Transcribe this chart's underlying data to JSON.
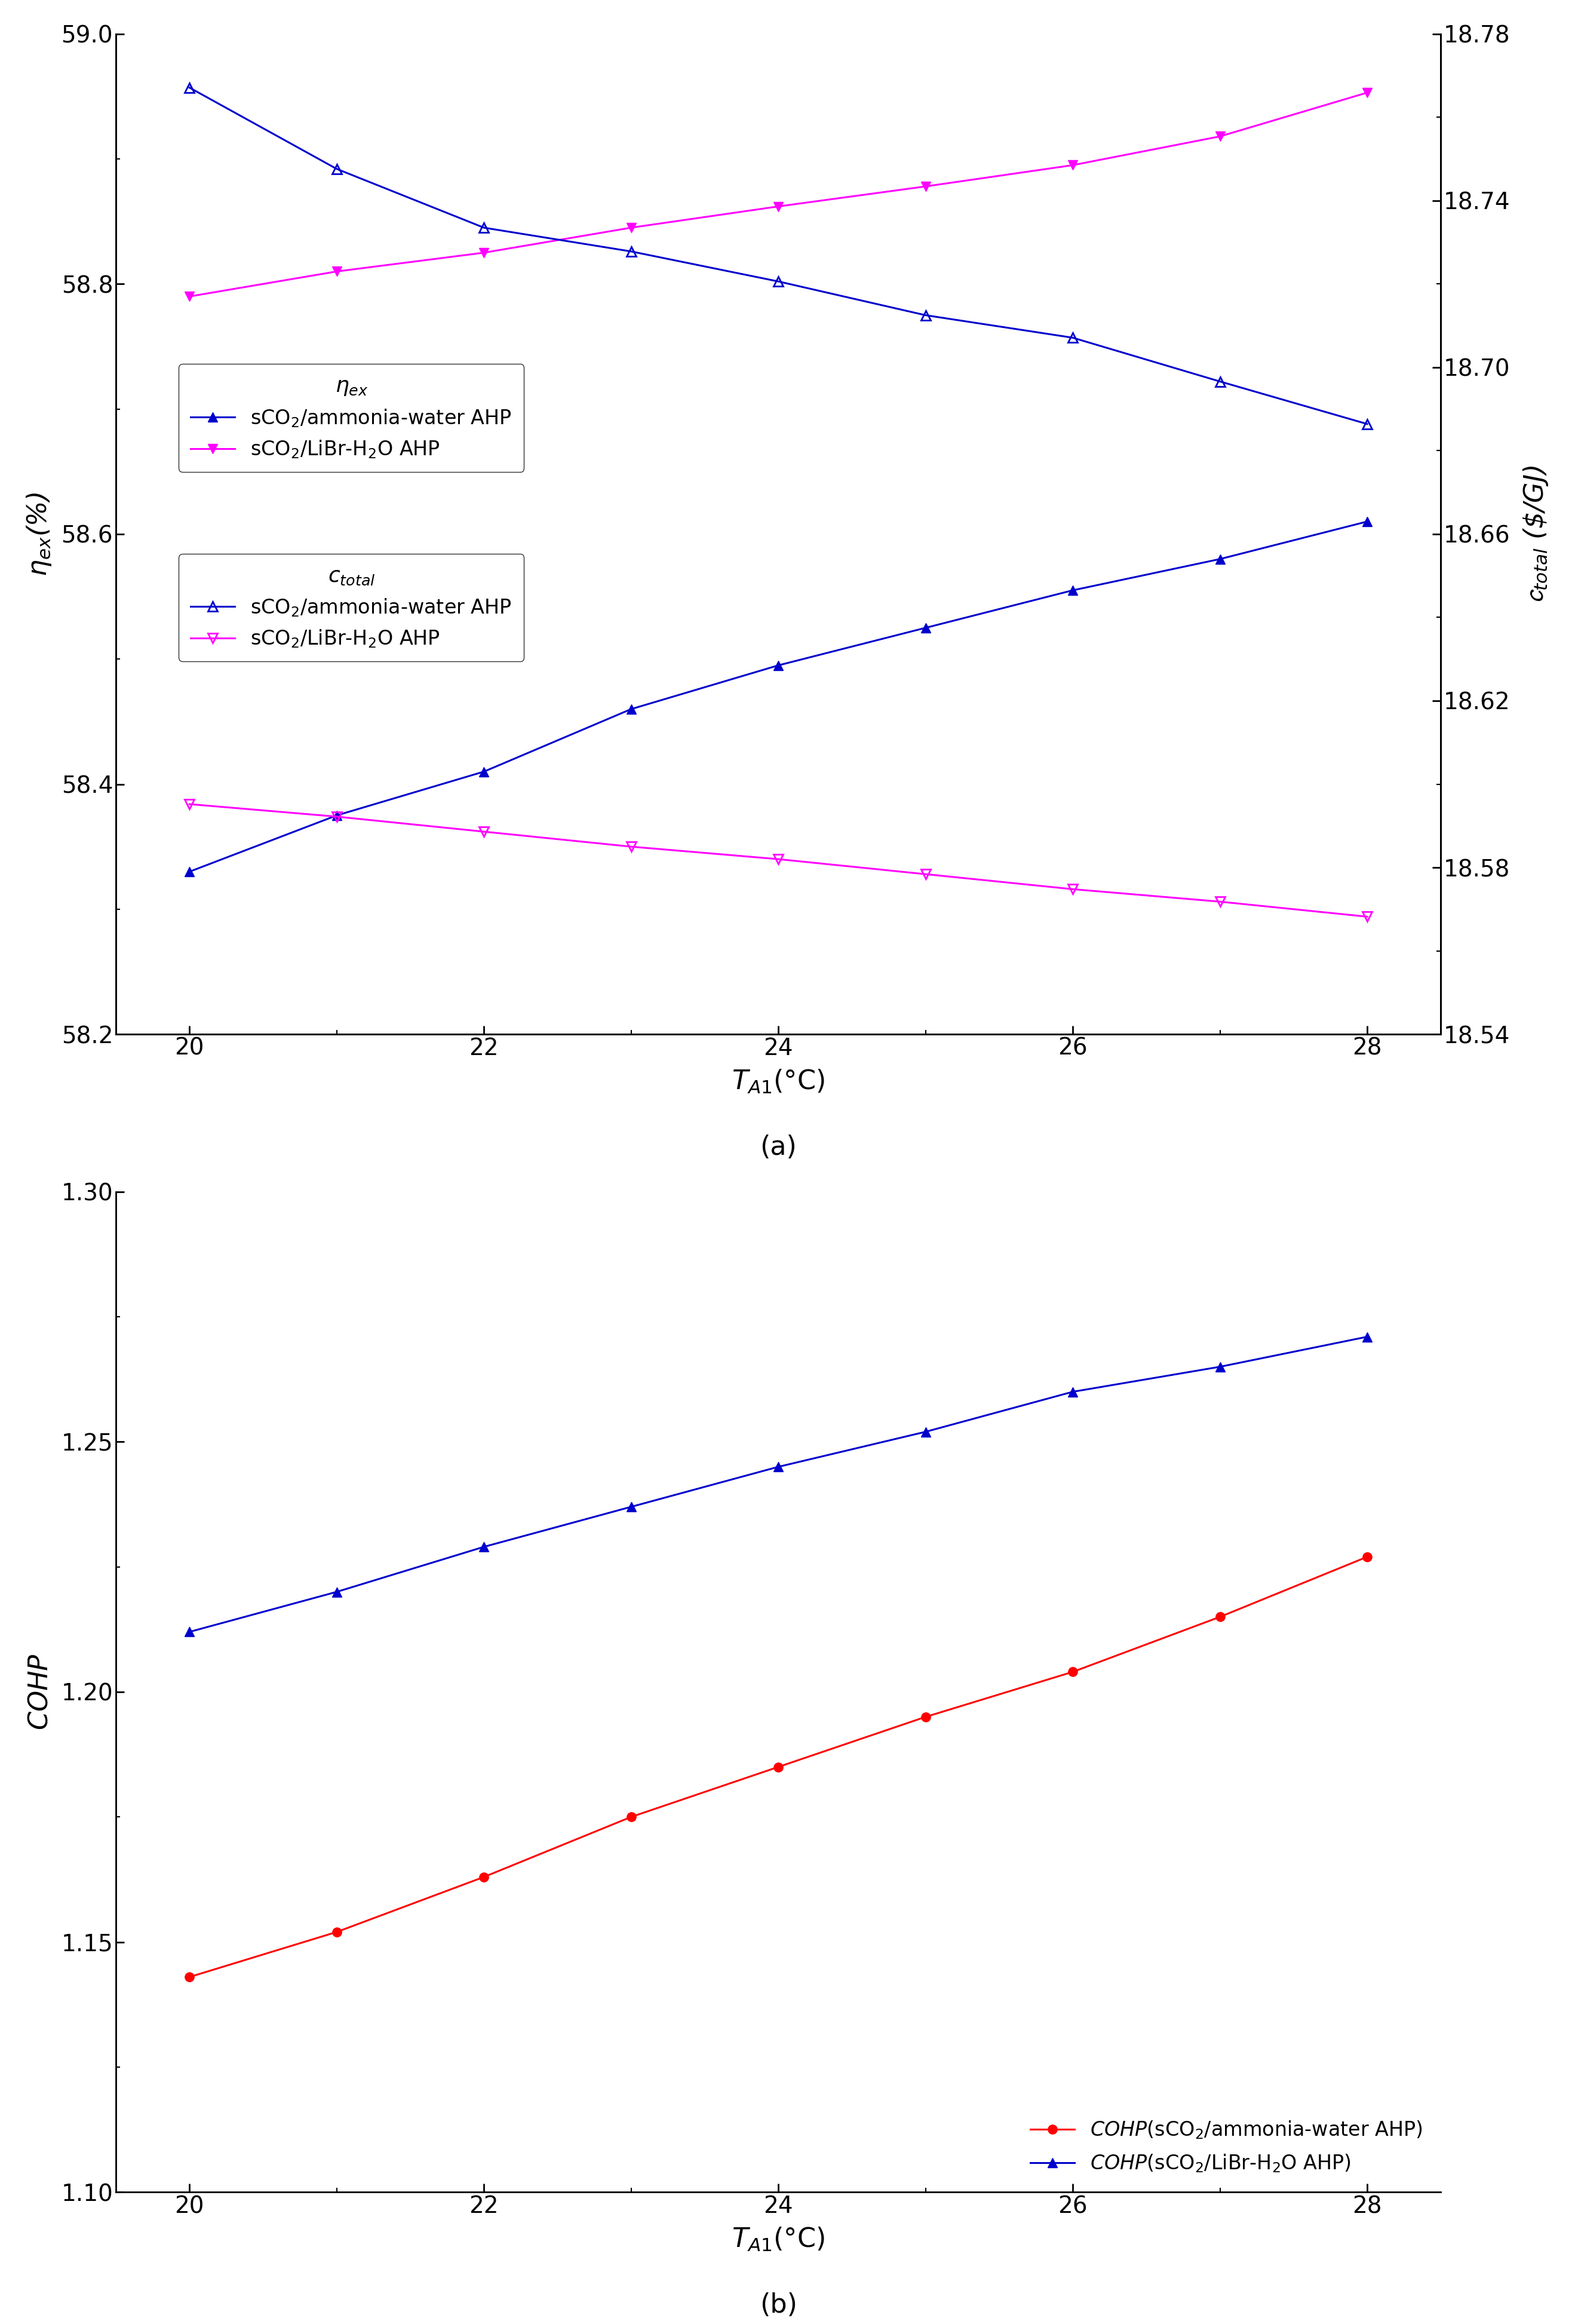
{
  "x": [
    20,
    21,
    22,
    23,
    24,
    25,
    26,
    27,
    28
  ],
  "eta_ammonia": [
    58.33,
    58.375,
    58.41,
    58.46,
    58.495,
    58.525,
    58.555,
    58.58,
    58.61
  ],
  "eta_libr": [
    58.79,
    58.81,
    58.825,
    58.845,
    58.862,
    58.878,
    58.895,
    58.918,
    58.953
  ],
  "c_ammonia_eta": [
    58.957,
    58.892,
    58.845,
    58.826,
    58.802,
    58.775,
    58.757,
    58.722,
    58.688
  ],
  "c_libr_eta": [
    58.384,
    58.374,
    58.362,
    58.35,
    58.34,
    58.328,
    58.316,
    58.306,
    58.294
  ],
  "cohp_ammonia": [
    1.143,
    1.152,
    1.163,
    1.175,
    1.185,
    1.195,
    1.204,
    1.215,
    1.227
  ],
  "cohp_libr": [
    1.212,
    1.22,
    1.229,
    1.237,
    1.245,
    1.252,
    1.26,
    1.265,
    1.271
  ],
  "eta_ylim": [
    58.2,
    59.0
  ],
  "eta_yticks": [
    58.2,
    58.4,
    58.6,
    58.8,
    59.0
  ],
  "c_ylim": [
    18.54,
    18.78
  ],
  "c_yticks": [
    18.54,
    18.58,
    18.62,
    18.66,
    18.7,
    18.74,
    18.78
  ],
  "cohp_ylim": [
    1.1,
    1.3
  ],
  "cohp_yticks": [
    1.1,
    1.15,
    1.2,
    1.25,
    1.3
  ],
  "xlim": [
    19.5,
    28.5
  ],
  "xticks": [
    20,
    22,
    24,
    26,
    28
  ],
  "blue_color": "#0000CD",
  "magenta_color": "#FF00FF",
  "red_color": "#FF0000",
  "legend_eta_ammonia": "sCO$_2$/ammonia-water AHP",
  "legend_eta_libr": "sCO$_2$/LiBr-H$_2$O AHP",
  "legend_c_ammonia": "sCO$_2$/ammonia-water AHP",
  "legend_c_libr": "sCO$_2$/LiBr-H$_2$O AHP",
  "legend_cohp_ammonia": "$COHP$(sCO$_2$/ammonia-water AHP)",
  "legend_cohp_libr": "$COHP$(sCO$_2$/LiBr-H$_2$O AHP)"
}
